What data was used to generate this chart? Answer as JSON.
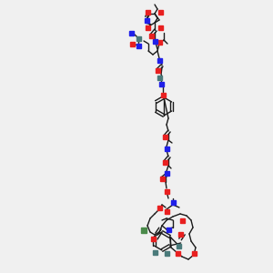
{
  "bg_color": "#f0f0f0",
  "title": "",
  "figsize": [
    3.0,
    3.0
  ],
  "dpi": 100
}
